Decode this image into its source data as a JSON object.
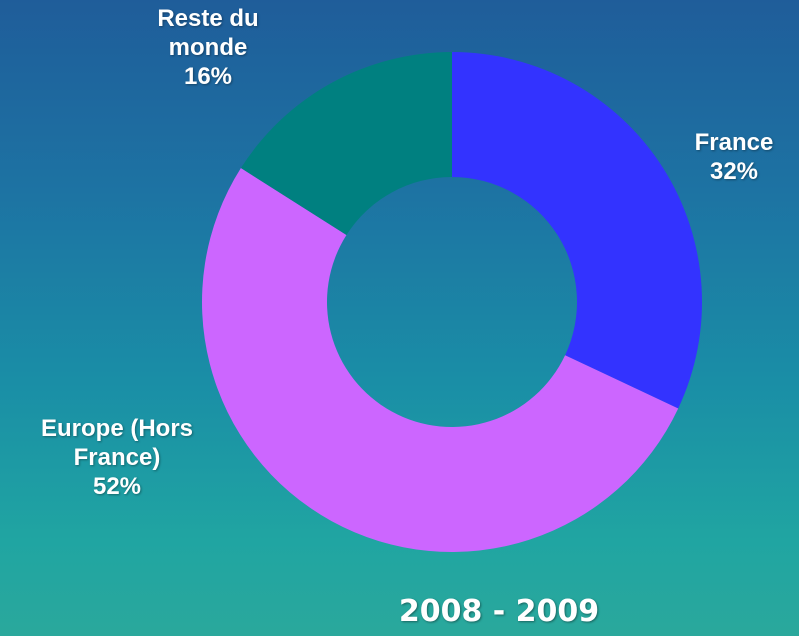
{
  "chart_data": {
    "type": "donut",
    "title": "2008 - 2009",
    "categories": [
      "France",
      "Europe (Hors France)",
      "Reste du monde"
    ],
    "values": [
      32,
      52,
      16
    ],
    "value_labels": [
      "32%",
      "52%",
      "16%"
    ],
    "colors": [
      "#3333ff",
      "#cc66ff",
      "#008080"
    ]
  }
}
